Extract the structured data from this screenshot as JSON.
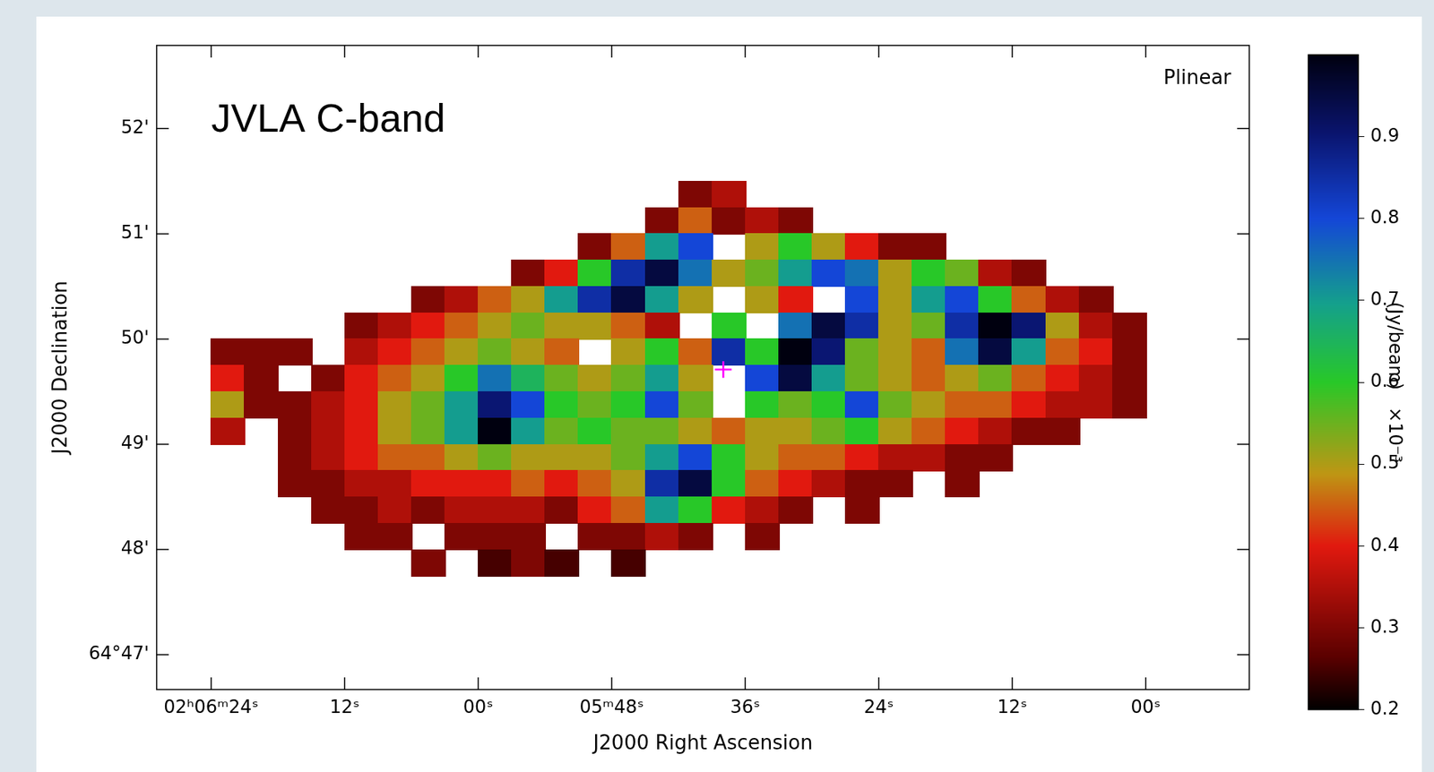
{
  "chart_data": {
    "type": "heatmap",
    "title": "JVLA C-band",
    "subtitle": "Plinear",
    "x_label": "J2000 Right Ascension",
    "y_label": "J2000 Declination",
    "xlim": [
      388.9,
      290.7
    ],
    "xticks": [
      {
        "value": 384,
        "label": "02ʰ06ᵐ24ˢ"
      },
      {
        "value": 372,
        "label": "12ˢ"
      },
      {
        "value": 360,
        "label": "00ˢ"
      },
      {
        "value": 348,
        "label": "05ᵐ48ˢ"
      },
      {
        "value": 336,
        "label": "36ˢ"
      },
      {
        "value": 324,
        "label": "24ˢ"
      },
      {
        "value": 312,
        "label": "12ˢ"
      },
      {
        "value": 300,
        "label": "00ˢ"
      }
    ],
    "ylim": [
      46.67,
      52.79
    ],
    "yticks": [
      {
        "value": 47,
        "label": "64°47'"
      },
      {
        "value": 48,
        "label": "48'"
      },
      {
        "value": 49,
        "label": "49'"
      },
      {
        "value": 50,
        "label": "50'"
      },
      {
        "value": 51,
        "label": "51'"
      },
      {
        "value": 52,
        "label": "52'"
      }
    ],
    "grid": false,
    "colorbar": {
      "label": "(Jy/beam)",
      "multiplier": "×10⁻³",
      "range": [
        0.2,
        1.0
      ],
      "ticks": [
        0.2,
        0.3,
        0.4,
        0.5,
        0.6,
        0.7,
        0.8,
        0.9
      ]
    },
    "cells": {
      "x": [
        385.5,
        382.5,
        379.5,
        376.5,
        373.5,
        370.5,
        367.5,
        364.5,
        361.5,
        358.5,
        355.5,
        352.5,
        349.5,
        346.5,
        343.5,
        340.5,
        337.5,
        334.5,
        331.5,
        328.5,
        325.5,
        322.5,
        319.5,
        316.5,
        313.5,
        310.5,
        307.5,
        304.5,
        301.5,
        298.5
      ],
      "y": [
        51.375,
        51.125,
        50.875,
        50.625,
        50.375,
        50.125,
        49.875,
        49.625,
        49.375,
        49.125,
        48.875,
        48.625,
        48.375,
        48.125,
        47.875
      ],
      "values": [
        [
          null,
          null,
          null,
          null,
          null,
          null,
          null,
          null,
          null,
          null,
          null,
          null,
          null,
          null,
          null,
          0.3,
          0.35,
          null,
          null,
          null,
          null,
          null,
          null,
          null,
          null,
          null,
          null,
          null,
          null,
          null
        ],
        [
          null,
          null,
          null,
          null,
          null,
          null,
          null,
          null,
          null,
          null,
          null,
          null,
          null,
          null,
          0.3,
          0.45,
          0.3,
          0.35,
          0.3,
          null,
          null,
          null,
          null,
          null,
          null,
          null,
          null,
          null,
          null,
          null
        ],
        [
          null,
          null,
          null,
          null,
          null,
          null,
          null,
          null,
          null,
          null,
          null,
          null,
          0.3,
          0.45,
          0.7,
          0.8,
          null,
          0.5,
          0.6,
          0.5,
          0.4,
          0.3,
          0.3,
          null,
          null,
          null,
          null,
          null,
          null,
          null
        ],
        [
          null,
          null,
          null,
          null,
          null,
          null,
          null,
          null,
          null,
          null,
          0.3,
          0.4,
          0.6,
          0.85,
          0.95,
          0.75,
          0.5,
          0.55,
          0.7,
          0.8,
          0.75,
          0.5,
          0.6,
          0.55,
          0.35,
          0.3,
          null,
          null,
          null,
          null
        ],
        [
          null,
          null,
          null,
          null,
          null,
          null,
          null,
          0.3,
          0.35,
          0.45,
          0.5,
          0.7,
          0.85,
          0.95,
          0.7,
          0.5,
          null,
          0.5,
          0.4,
          null,
          0.8,
          0.5,
          0.7,
          0.8,
          0.6,
          0.45,
          0.35,
          0.3,
          null,
          null
        ],
        [
          null,
          null,
          null,
          null,
          null,
          0.3,
          0.35,
          0.4,
          0.45,
          0.5,
          0.55,
          0.5,
          0.5,
          0.45,
          0.35,
          null,
          0.6,
          null,
          0.75,
          0.95,
          0.85,
          0.5,
          0.55,
          0.85,
          1.0,
          0.9,
          0.5,
          0.35,
          0.3,
          null
        ],
        [
          null,
          0.3,
          0.3,
          0.3,
          null,
          0.35,
          0.4,
          0.45,
          0.5,
          0.55,
          0.5,
          0.45,
          null,
          0.5,
          0.6,
          0.45,
          0.85,
          0.6,
          1.0,
          0.9,
          0.55,
          0.5,
          0.45,
          0.75,
          0.95,
          0.7,
          0.45,
          0.4,
          0.3,
          null
        ],
        [
          null,
          0.4,
          0.3,
          null,
          0.3,
          0.4,
          0.45,
          0.5,
          0.6,
          0.75,
          0.65,
          0.55,
          0.5,
          0.55,
          0.7,
          0.5,
          null,
          0.8,
          0.95,
          0.7,
          0.55,
          0.5,
          0.45,
          0.5,
          0.55,
          0.45,
          0.4,
          0.35,
          0.3,
          null
        ],
        [
          null,
          0.5,
          0.3,
          0.3,
          0.35,
          0.4,
          0.5,
          0.55,
          0.7,
          0.9,
          0.8,
          0.6,
          0.55,
          0.6,
          0.8,
          0.55,
          null,
          0.6,
          0.55,
          0.6,
          0.8,
          0.55,
          0.5,
          0.45,
          0.45,
          0.4,
          0.35,
          0.35,
          0.3,
          null
        ],
        [
          null,
          0.35,
          null,
          0.3,
          0.35,
          0.4,
          0.5,
          0.55,
          0.7,
          1.0,
          0.7,
          0.55,
          0.6,
          0.55,
          0.55,
          0.5,
          0.45,
          0.5,
          0.5,
          0.55,
          0.6,
          0.5,
          0.45,
          0.4,
          0.35,
          0.3,
          0.3,
          null,
          null,
          null
        ],
        [
          null,
          null,
          null,
          0.3,
          0.35,
          0.4,
          0.45,
          0.45,
          0.5,
          0.55,
          0.5,
          0.5,
          0.5,
          0.55,
          0.7,
          0.8,
          0.6,
          0.5,
          0.45,
          0.45,
          0.4,
          0.35,
          0.35,
          0.3,
          0.3,
          null,
          null,
          null,
          null,
          null
        ],
        [
          null,
          null,
          null,
          0.3,
          0.3,
          0.35,
          0.35,
          0.4,
          0.4,
          0.4,
          0.45,
          0.4,
          0.45,
          0.5,
          0.85,
          0.95,
          0.6,
          0.45,
          0.4,
          0.35,
          0.3,
          0.3,
          null,
          0.3,
          null,
          null,
          null,
          null,
          null,
          null
        ],
        [
          null,
          null,
          null,
          null,
          0.3,
          0.3,
          0.35,
          0.3,
          0.35,
          0.35,
          0.35,
          0.3,
          0.4,
          0.45,
          0.7,
          0.6,
          0.4,
          0.35,
          0.3,
          null,
          0.3,
          null,
          null,
          null,
          null,
          null,
          null,
          null,
          null,
          null
        ],
        [
          null,
          null,
          null,
          null,
          null,
          0.3,
          0.3,
          null,
          0.3,
          0.3,
          0.3,
          null,
          0.3,
          0.3,
          0.35,
          0.3,
          null,
          0.3,
          null,
          null,
          null,
          null,
          null,
          null,
          null,
          null,
          null,
          null,
          null,
          null
        ],
        [
          null,
          null,
          null,
          null,
          null,
          null,
          null,
          0.3,
          null,
          0.25,
          0.3,
          0.25,
          null,
          0.25,
          null,
          null,
          null,
          null,
          null,
          null,
          null,
          null,
          null,
          null,
          null,
          null,
          null,
          null,
          null,
          null
        ]
      ]
    },
    "series": [
      {
        "type": "scatter",
        "color": "#ff00ff",
        "marker": "cross",
        "x": [
          337.97
        ],
        "values": [
          49.71
        ]
      }
    ]
  }
}
